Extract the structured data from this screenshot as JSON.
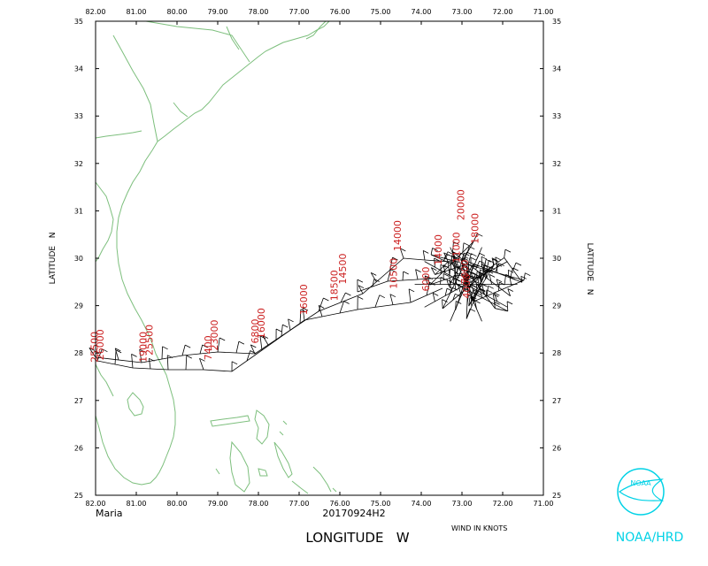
{
  "map": {
    "lon_range": [
      -82.0,
      -71.0
    ],
    "lat_range": [
      25,
      35
    ],
    "lon_tick_labels": [
      "82.00",
      "81.00",
      "80.00",
      "79.00",
      "78.00",
      "77.00",
      "76.00",
      "75.00",
      "74.00",
      "73.00",
      "72.00",
      "71.00"
    ],
    "lat_tick_labels": [
      "25",
      "26",
      "27",
      "28",
      "29",
      "30",
      "31",
      "32",
      "33",
      "34",
      "35"
    ],
    "x_axis_title": "LONGITUDE   W",
    "y_axis_title": "LATITUDE   N",
    "coast_color": "#7dbf7d",
    "track_color": "#000000",
    "label_color": "#cc2222"
  },
  "footer": {
    "storm_name": "Maria",
    "time_label": "20170924H2",
    "wind_units": "WIND IN KNOTS"
  },
  "logo": {
    "emblem_text": "NOAA",
    "org_text": "NOAA/HRD",
    "color": "#00d2e6"
  },
  "flight_labels": [
    {
      "text": "26000",
      "lon": -81.8,
      "lat": 27.85
    },
    {
      "text": "25500",
      "lon": -81.95,
      "lat": 27.8
    },
    {
      "text": "25500",
      "lon": -80.6,
      "lat": 27.95
    },
    {
      "text": "19000",
      "lon": -80.75,
      "lat": 27.8
    },
    {
      "text": "23000",
      "lon": -79.0,
      "lat": 28.05
    },
    {
      "text": "7400",
      "lon": -79.15,
      "lat": 27.85
    },
    {
      "text": "16000",
      "lon": -77.85,
      "lat": 28.3
    },
    {
      "text": "6800",
      "lon": -78.0,
      "lat": 28.2
    },
    {
      "text": "16000",
      "lon": -76.8,
      "lat": 28.8
    },
    {
      "text": "14500",
      "lon": -75.85,
      "lat": 29.45
    },
    {
      "text": "18500",
      "lon": -76.05,
      "lat": 29.1
    },
    {
      "text": "14000",
      "lon": -74.5,
      "lat": 30.15
    },
    {
      "text": "10500",
      "lon": -74.6,
      "lat": 29.35
    },
    {
      "text": "14000",
      "lon": -73.5,
      "lat": 29.85
    },
    {
      "text": "6000",
      "lon": -73.8,
      "lat": 29.3
    },
    {
      "text": "20000",
      "lon": -72.95,
      "lat": 30.8
    },
    {
      "text": "18000",
      "lon": -72.6,
      "lat": 30.3
    },
    {
      "text": "11000",
      "lon": -73.05,
      "lat": 29.9
    },
    {
      "text": "7000",
      "lon": -72.85,
      "lat": 29.45
    },
    {
      "text": "4000",
      "lon": -72.8,
      "lat": 29.15
    }
  ]
}
